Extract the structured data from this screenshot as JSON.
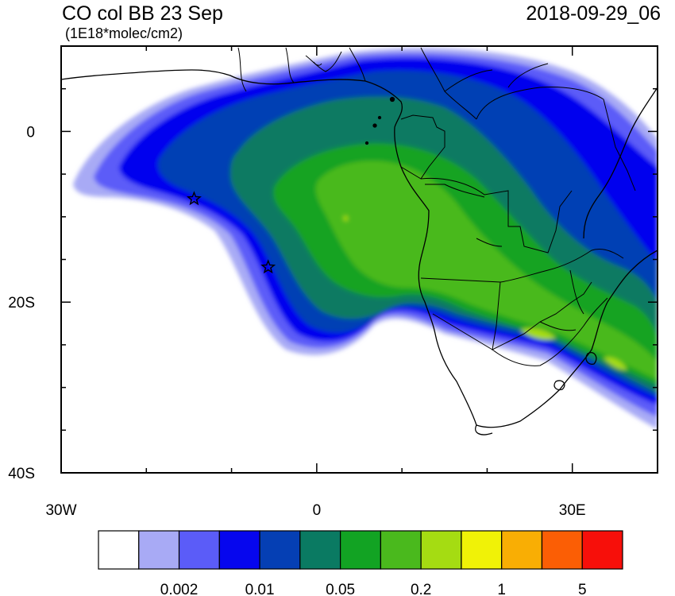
{
  "header": {
    "title": "CO col BB 23 Sep",
    "units": "(1E18*molec/cm2)",
    "datetime": "2018-09-29_06"
  },
  "map": {
    "lon_range": [
      -30,
      40
    ],
    "lat_range": [
      -40,
      10
    ],
    "x_ticks": [
      {
        "value": -30,
        "label": "30W"
      },
      {
        "value": 0,
        "label": "0"
      },
      {
        "value": 30,
        "label": "30E"
      }
    ],
    "y_ticks": [
      {
        "value": 0,
        "label": "0"
      },
      {
        "value": -20,
        "label": "20S"
      },
      {
        "value": -40,
        "label": "40S"
      }
    ],
    "markers": [
      {
        "name": "star-marker",
        "lon": -14.4,
        "lat": -7.9
      },
      {
        "name": "star-marker",
        "lon": -5.7,
        "lat": -15.9
      }
    ]
  },
  "colorbar": {
    "colors": [
      "#ffffff",
      "#a8aaf5",
      "#5b5cf8",
      "#0606ee",
      "#053fb4",
      "#0a7a62",
      "#12a323",
      "#4ab91d",
      "#a5dc12",
      "#f0f207",
      "#f9ae04",
      "#fb5e05",
      "#f70f0a"
    ],
    "labels": [
      {
        "boundary": 2,
        "label": "0.002"
      },
      {
        "boundary": 4,
        "label": "0.01"
      },
      {
        "boundary": 6,
        "label": "0.05"
      },
      {
        "boundary": 8,
        "label": "0.2"
      },
      {
        "boundary": 10,
        "label": "1"
      },
      {
        "boundary": 12,
        "label": "5"
      }
    ]
  }
}
